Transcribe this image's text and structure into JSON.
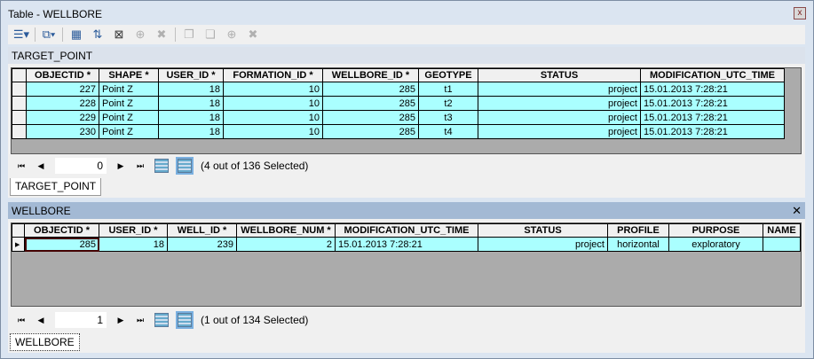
{
  "window": {
    "title": "Table - WELLBORE",
    "close_label": "x"
  },
  "toolbar": {
    "icons": [
      "table-options-icon",
      "related-tables-icon",
      "select-by-attributes-icon",
      "switch-selection-icon",
      "clear-selection-icon",
      "zoom-to-selected-icon",
      "delete-selected-icon",
      "copy-selected-icon",
      "paste-icon",
      "zoom-icon",
      "delete-icon"
    ]
  },
  "target": {
    "title": "TARGET_POINT",
    "close_label": "✕",
    "columns": [
      "OBJECTID *",
      "SHAPE *",
      "USER_ID *",
      "FORMATION_ID *",
      "WELLBORE_ID *",
      "GEOTYPE",
      "STATUS",
      "MODIFICATION_UTC_TIME"
    ],
    "rows": [
      [
        "227",
        "Point Z",
        "18",
        "10",
        "285",
        "t1",
        "project",
        "15.01.2013 7:28:21"
      ],
      [
        "228",
        "Point Z",
        "18",
        "10",
        "285",
        "t2",
        "project",
        "15.01.2013 7:28:21"
      ],
      [
        "229",
        "Point Z",
        "18",
        "10",
        "285",
        "t3",
        "project",
        "15.01.2013 7:28:21"
      ],
      [
        "230",
        "Point Z",
        "18",
        "10",
        "285",
        "t4",
        "project",
        "15.01.2013 7:28:21"
      ]
    ],
    "record": "0",
    "selection": "(4 out of 136 Selected)",
    "tab": "TARGET_POINT"
  },
  "wellbore": {
    "title": "WELLBORE",
    "close_label": "✕",
    "columns": [
      "OBJECTID *",
      "USER_ID *",
      "WELL_ID *",
      "WELLBORE_NUM *",
      "MODIFICATION_UTC_TIME",
      "STATUS",
      "PROFILE",
      "PURPOSE",
      "NAME"
    ],
    "rows": [
      [
        "285",
        "18",
        "239",
        "2",
        "15.01.2013 7:28:21",
        "project",
        "horizontal",
        "exploratory",
        ""
      ]
    ],
    "record": "1",
    "selection": "(1 out of 134 Selected)",
    "tab": "WELLBORE"
  },
  "colors": {
    "selected_row": "#aaffff",
    "active_header": "#a3b9d4"
  }
}
